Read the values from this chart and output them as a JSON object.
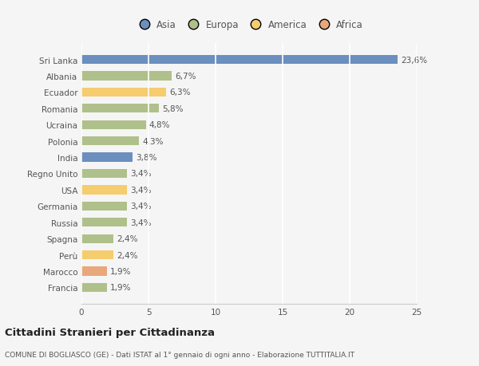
{
  "countries": [
    "Francia",
    "Marocco",
    "Perù",
    "Spagna",
    "Russia",
    "Germania",
    "USA",
    "Regno Unito",
    "India",
    "Polonia",
    "Ucraina",
    "Romania",
    "Ecuador",
    "Albania",
    "Sri Lanka"
  ],
  "values": [
    1.9,
    1.9,
    2.4,
    2.4,
    3.4,
    3.4,
    3.4,
    3.4,
    3.8,
    4.3,
    4.8,
    5.8,
    6.3,
    6.7,
    23.6
  ],
  "labels": [
    "1,9%",
    "1,9%",
    "2,4%",
    "2,4%",
    "3,4%",
    "3,4%",
    "3,4%",
    "3,4%",
    "3,8%",
    "4,3%",
    "4,8%",
    "5,8%",
    "6,3%",
    "6,7%",
    "23,6%"
  ],
  "colors": [
    "#afc08a",
    "#e8a87c",
    "#f5cc6e",
    "#afc08a",
    "#afc08a",
    "#afc08a",
    "#f5cc6e",
    "#afc08a",
    "#6b8fbe",
    "#afc08a",
    "#afc08a",
    "#afc08a",
    "#f5cc6e",
    "#afc08a",
    "#6b8fbe"
  ],
  "legend_labels": [
    "Asia",
    "Europa",
    "America",
    "Africa"
  ],
  "legend_colors": [
    "#6b8fbe",
    "#afc08a",
    "#f5cc6e",
    "#e8a87c"
  ],
  "xlim": [
    0,
    25
  ],
  "xticks": [
    0,
    5,
    10,
    15,
    20,
    25
  ],
  "title": "Cittadini Stranieri per Cittadinanza",
  "subtitle": "COMUNE DI BOGLIASCO (GE) - Dati ISTAT al 1° gennaio di ogni anno - Elaborazione TUTTITALIA.IT",
  "bg_color": "#f5f5f5",
  "bar_height": 0.55,
  "text_color": "#555555",
  "grid_color": "#ffffff"
}
